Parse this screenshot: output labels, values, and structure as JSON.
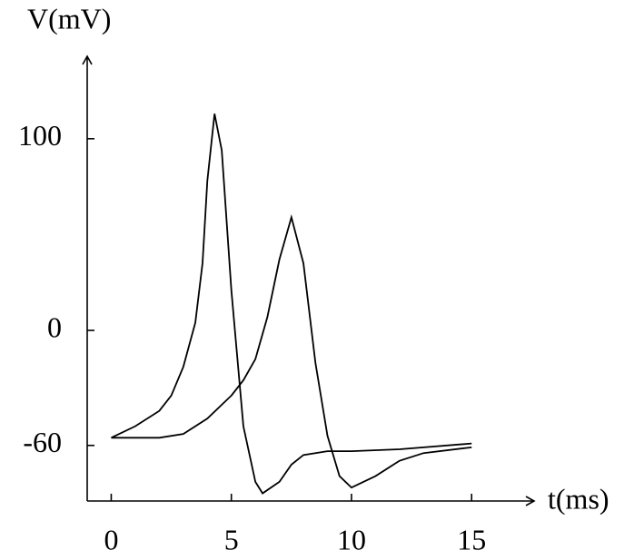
{
  "chart_data": {
    "type": "line",
    "xlabel": "t(ms)",
    "ylabel": "V(mV)",
    "xlim": [
      -1,
      17.6
    ],
    "ylim": [
      -89,
      143
    ],
    "xticks": [
      0,
      5,
      10,
      15
    ],
    "yticks": [
      -60,
      0,
      100
    ],
    "grid": false,
    "series": [
      {
        "color": "#000000",
        "x": [
          0,
          1,
          2,
          2.5,
          3,
          3.5,
          3.8,
          4.0,
          4.3,
          4.6,
          5,
          5.5,
          6,
          6.3,
          7,
          7.5,
          8,
          9,
          10,
          12,
          15
        ],
        "values": [
          -56,
          -50,
          -42,
          -34,
          -19,
          4,
          35,
          78,
          113,
          94,
          21,
          -50,
          -79,
          -85,
          -79,
          -70,
          -65,
          -63,
          -63,
          -62,
          -59
        ]
      },
      {
        "color": "#000000",
        "x": [
          0,
          2,
          3,
          4,
          5,
          5.5,
          6,
          6.5,
          7,
          7.5,
          8,
          8.5,
          9,
          9.5,
          10,
          11,
          12,
          13,
          15
        ],
        "values": [
          -56,
          -56,
          -54,
          -46,
          -34,
          -26,
          -15,
          7,
          37,
          59,
          35,
          -17,
          -55,
          -76,
          -82,
          -76,
          -68,
          -64,
          -61
        ]
      }
    ]
  }
}
